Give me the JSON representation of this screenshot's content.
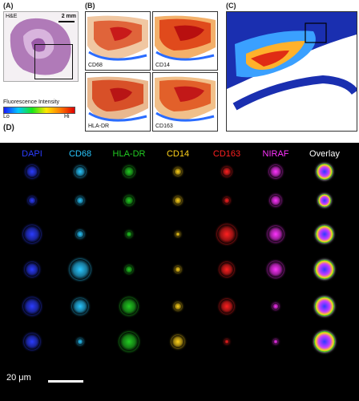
{
  "panels": {
    "a": {
      "label": "(A)",
      "stain": "H&E",
      "scale": "2 mm"
    },
    "b": {
      "label": "(B)",
      "tiles": [
        "CD68",
        "CD14",
        "HLA-DR",
        "CD163"
      ]
    },
    "c": {
      "label": "(C)",
      "tile": "NIRAF"
    },
    "d": {
      "label": "(D)",
      "scale": "20 μm"
    }
  },
  "colorbar": {
    "title": "Fluorescence Intensity",
    "lo": "Lo",
    "hi": "Hi"
  },
  "channels": [
    {
      "name": "DAPI",
      "color": "#2b3cff"
    },
    {
      "name": "CD68",
      "color": "#29c7ff"
    },
    {
      "name": "HLA-DR",
      "color": "#22cc22"
    },
    {
      "name": "CD14",
      "color": "#ffd21a"
    },
    {
      "name": "CD163",
      "color": "#ff2020"
    },
    {
      "name": "NIRAF",
      "color": "#ff33ff"
    },
    {
      "name": "Overlay",
      "color": "#ffffff"
    }
  ]
}
